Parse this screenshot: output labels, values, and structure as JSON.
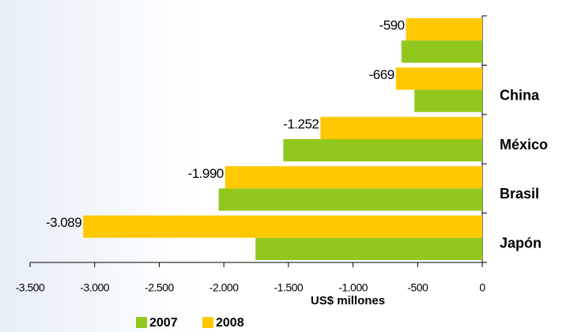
{
  "chart_data": {
    "type": "bar",
    "orientation": "horizontal",
    "categories": [
      null,
      "China",
      "México",
      "Brasil",
      "Japón"
    ],
    "series": [
      {
        "name": "2007",
        "color": "#92c81e",
        "values": [
          -625,
          -525,
          -1540,
          -2040,
          -1755
        ]
      },
      {
        "name": "2008",
        "color": "#ffc800",
        "values": [
          -590,
          -669,
          -1252,
          -1990,
          -3089
        ],
        "value_labels": [
          "-590",
          "-669",
          "-1.252",
          "-1.990",
          "-3.089"
        ]
      }
    ],
    "xlabel": "US$ millones",
    "xlim": [
      -3500,
      0
    ],
    "xticks": [
      {
        "value": -3500,
        "label": "-3.500"
      },
      {
        "value": -3000,
        "label": "-3.000"
      },
      {
        "value": -2500,
        "label": "-2.500"
      },
      {
        "value": -2000,
        "label": "-2.000"
      },
      {
        "value": -1500,
        "label": "-1.500"
      },
      {
        "value": -1000,
        "label": "-1.000"
      },
      {
        "value": -500,
        "label": "-500"
      },
      0
    ],
    "legend": "bottom"
  }
}
